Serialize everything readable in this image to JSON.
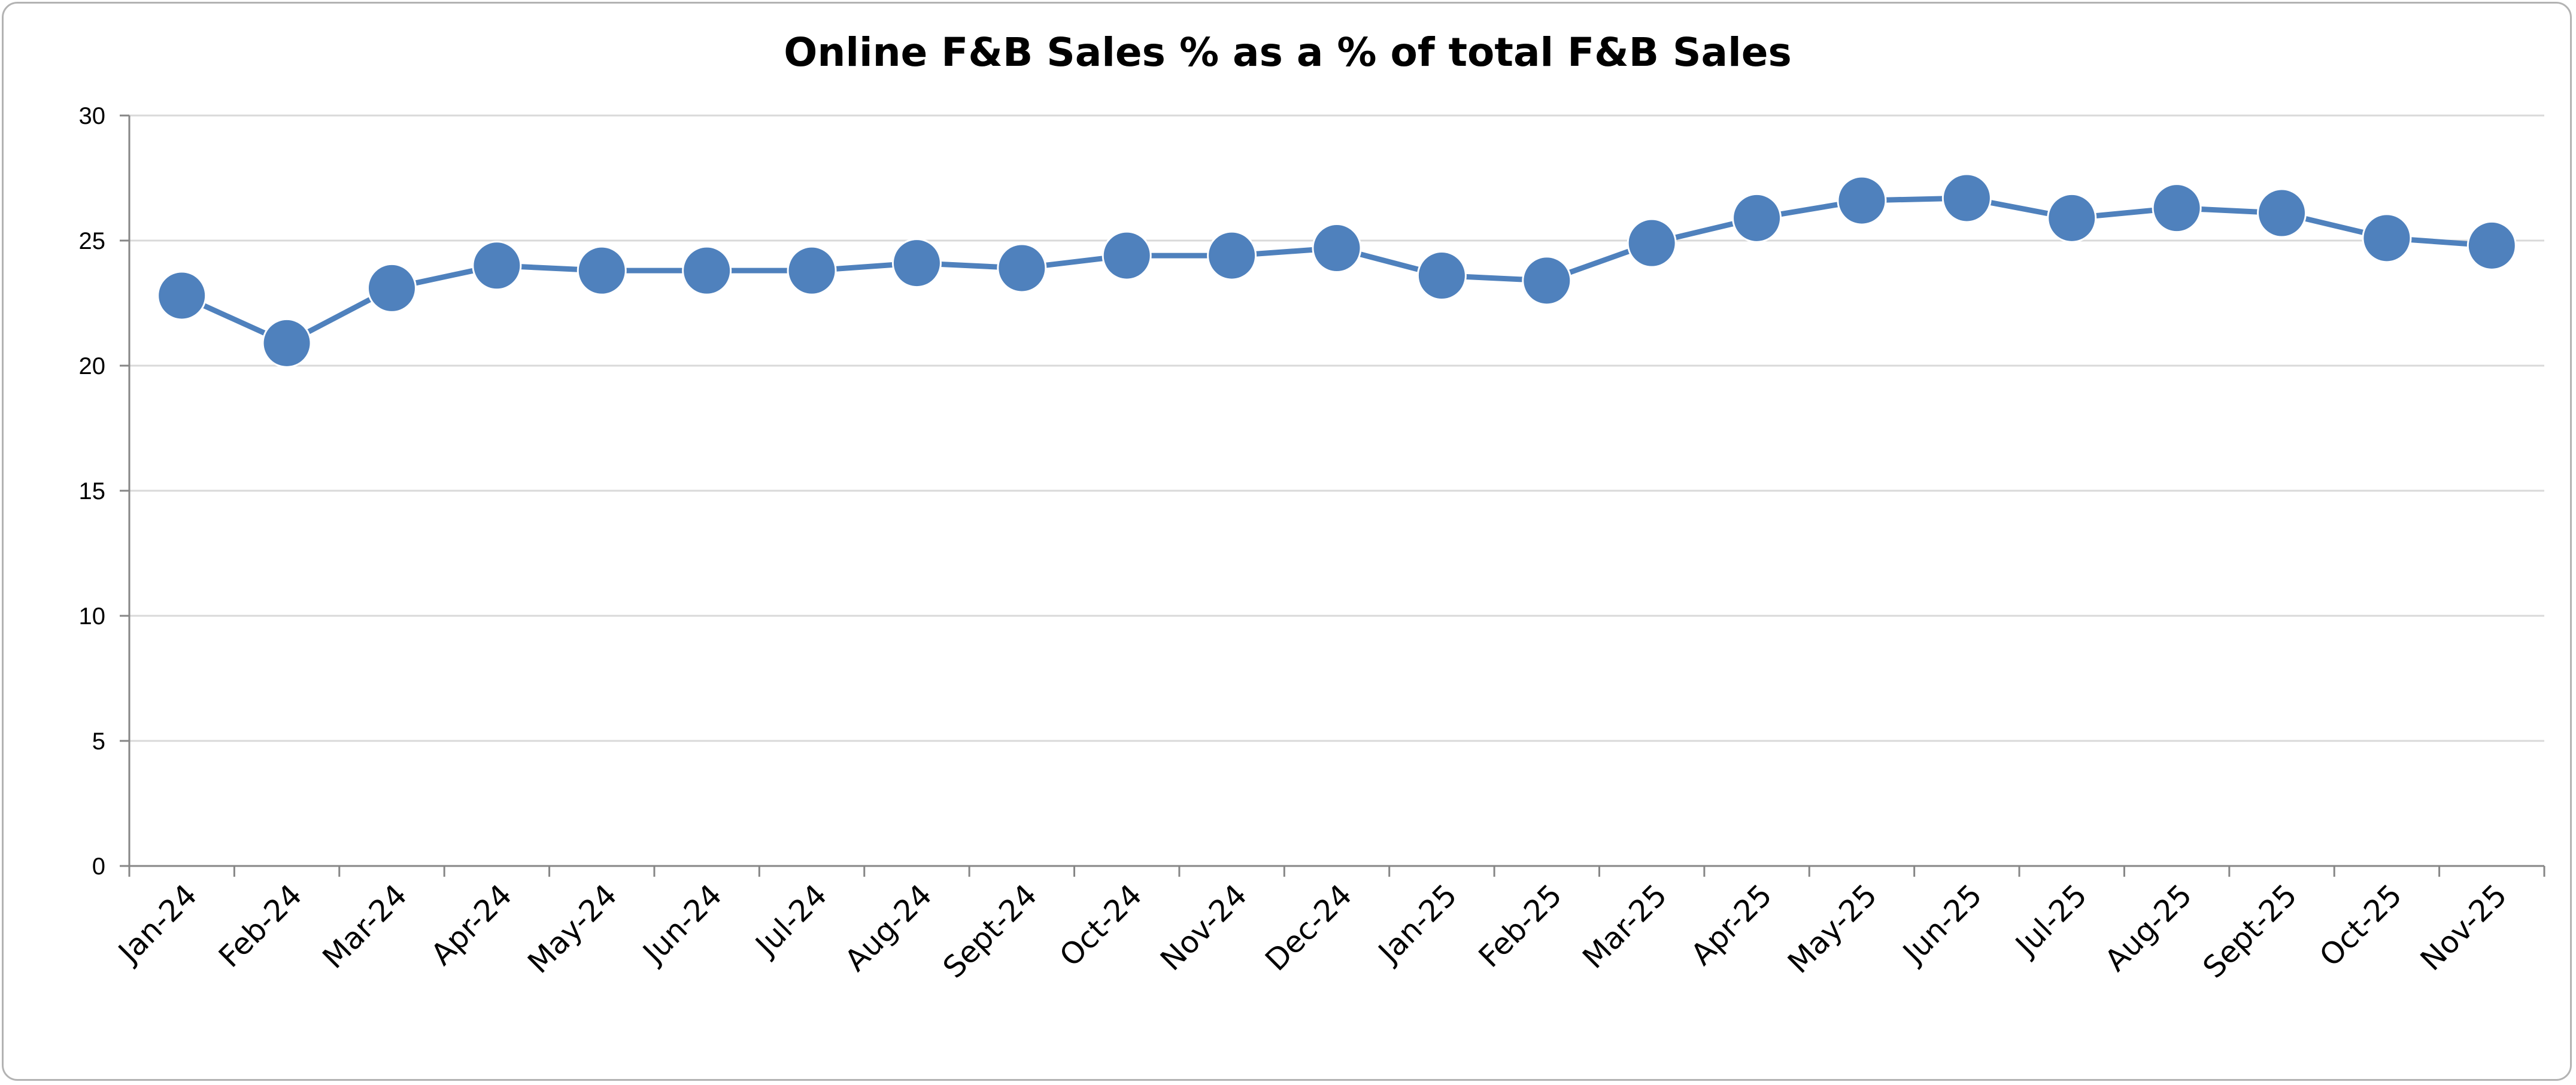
{
  "chart_data": {
    "type": "line",
    "title": "Online F&B Sales % as a % of total F&B Sales",
    "categories": [
      "Jan-24",
      "Feb-24",
      "Mar-24",
      "Apr-24",
      "May-24",
      "Jun-24",
      "Jul-24",
      "Aug-24",
      "Sept-24",
      "Oct-24",
      "Nov-24",
      "Dec-24",
      "Jan-25",
      "Feb-25",
      "Mar-25",
      "Apr-25",
      "May-25",
      "Jun-25",
      "Jul-25",
      "Aug-25",
      "Sept-25",
      "Oct-25",
      "Nov-25"
    ],
    "series": [
      {
        "values": [
          22.8,
          20.9,
          23.1,
          24.0,
          23.8,
          23.8,
          23.8,
          24.1,
          23.9,
          24.4,
          24.4,
          24.7,
          23.6,
          23.4,
          24.9,
          25.9,
          26.6,
          26.7,
          25.9,
          26.3,
          26.1,
          25.1,
          24.8
        ]
      }
    ],
    "y_ticks": [
      "0",
      "5",
      "10",
      "15",
      "20",
      "25",
      "30"
    ],
    "ylim": [
      0,
      30
    ],
    "xlabel": "",
    "ylabel": "",
    "grid": true,
    "legend": "none",
    "colors": {
      "series": "#4f81bd",
      "gridline": "#d9d9d9",
      "axis": "#868686",
      "frame": "#b3b3b3"
    }
  }
}
